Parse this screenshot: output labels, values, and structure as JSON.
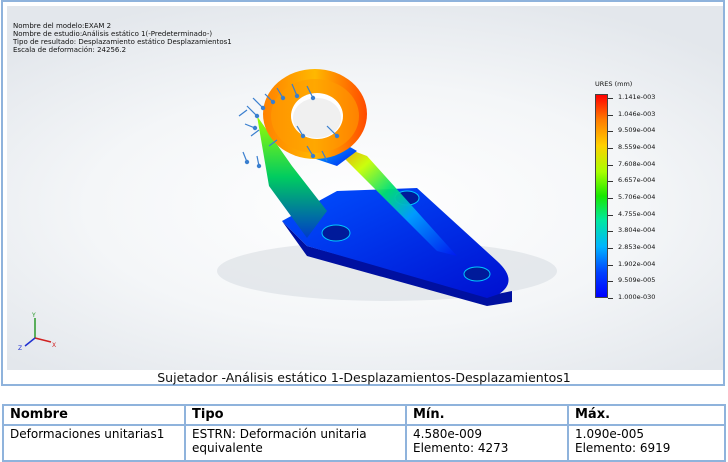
{
  "info": {
    "model": "Nombre del modelo:EXAM 2",
    "study": "Nombre de estudio:Análisis estático 1(-Predeterminado-)",
    "result_type": "Tipo de resultado: Desplazamiento estático Desplazamientos1",
    "scale": "Escala de deformación: 24256.2"
  },
  "legend": {
    "title": "URES (mm)",
    "ticks": [
      "1.141e-003",
      "1.046e-003",
      "9.509e-004",
      "8.559e-004",
      "7.608e-004",
      "6.657e-004",
      "5.706e-004",
      "4.755e-004",
      "3.804e-004",
      "2.853e-004",
      "1.902e-004",
      "9.509e-005",
      "1.000e-030"
    ]
  },
  "caption": "Sujetador -Análisis estático 1-Desplazamientos-Desplazamientos1",
  "triad": {
    "y": "Y",
    "x": "X",
    "z": "Z"
  },
  "table": {
    "headers": [
      "Nombre",
      "Tipo",
      "Mín.",
      "Máx."
    ],
    "row": {
      "name": "Deformaciones unitarias1",
      "type": "ESTRN: Deformación unitaria equivalente",
      "min_value": "4.580e-009",
      "min_element": "Elemento: 4273",
      "max_value": "1.090e-005",
      "max_element": "Elemento: 6919"
    }
  },
  "colors": {
    "frame": "#8fb3dc",
    "max": "#ff0000",
    "min": "#0000ff"
  }
}
